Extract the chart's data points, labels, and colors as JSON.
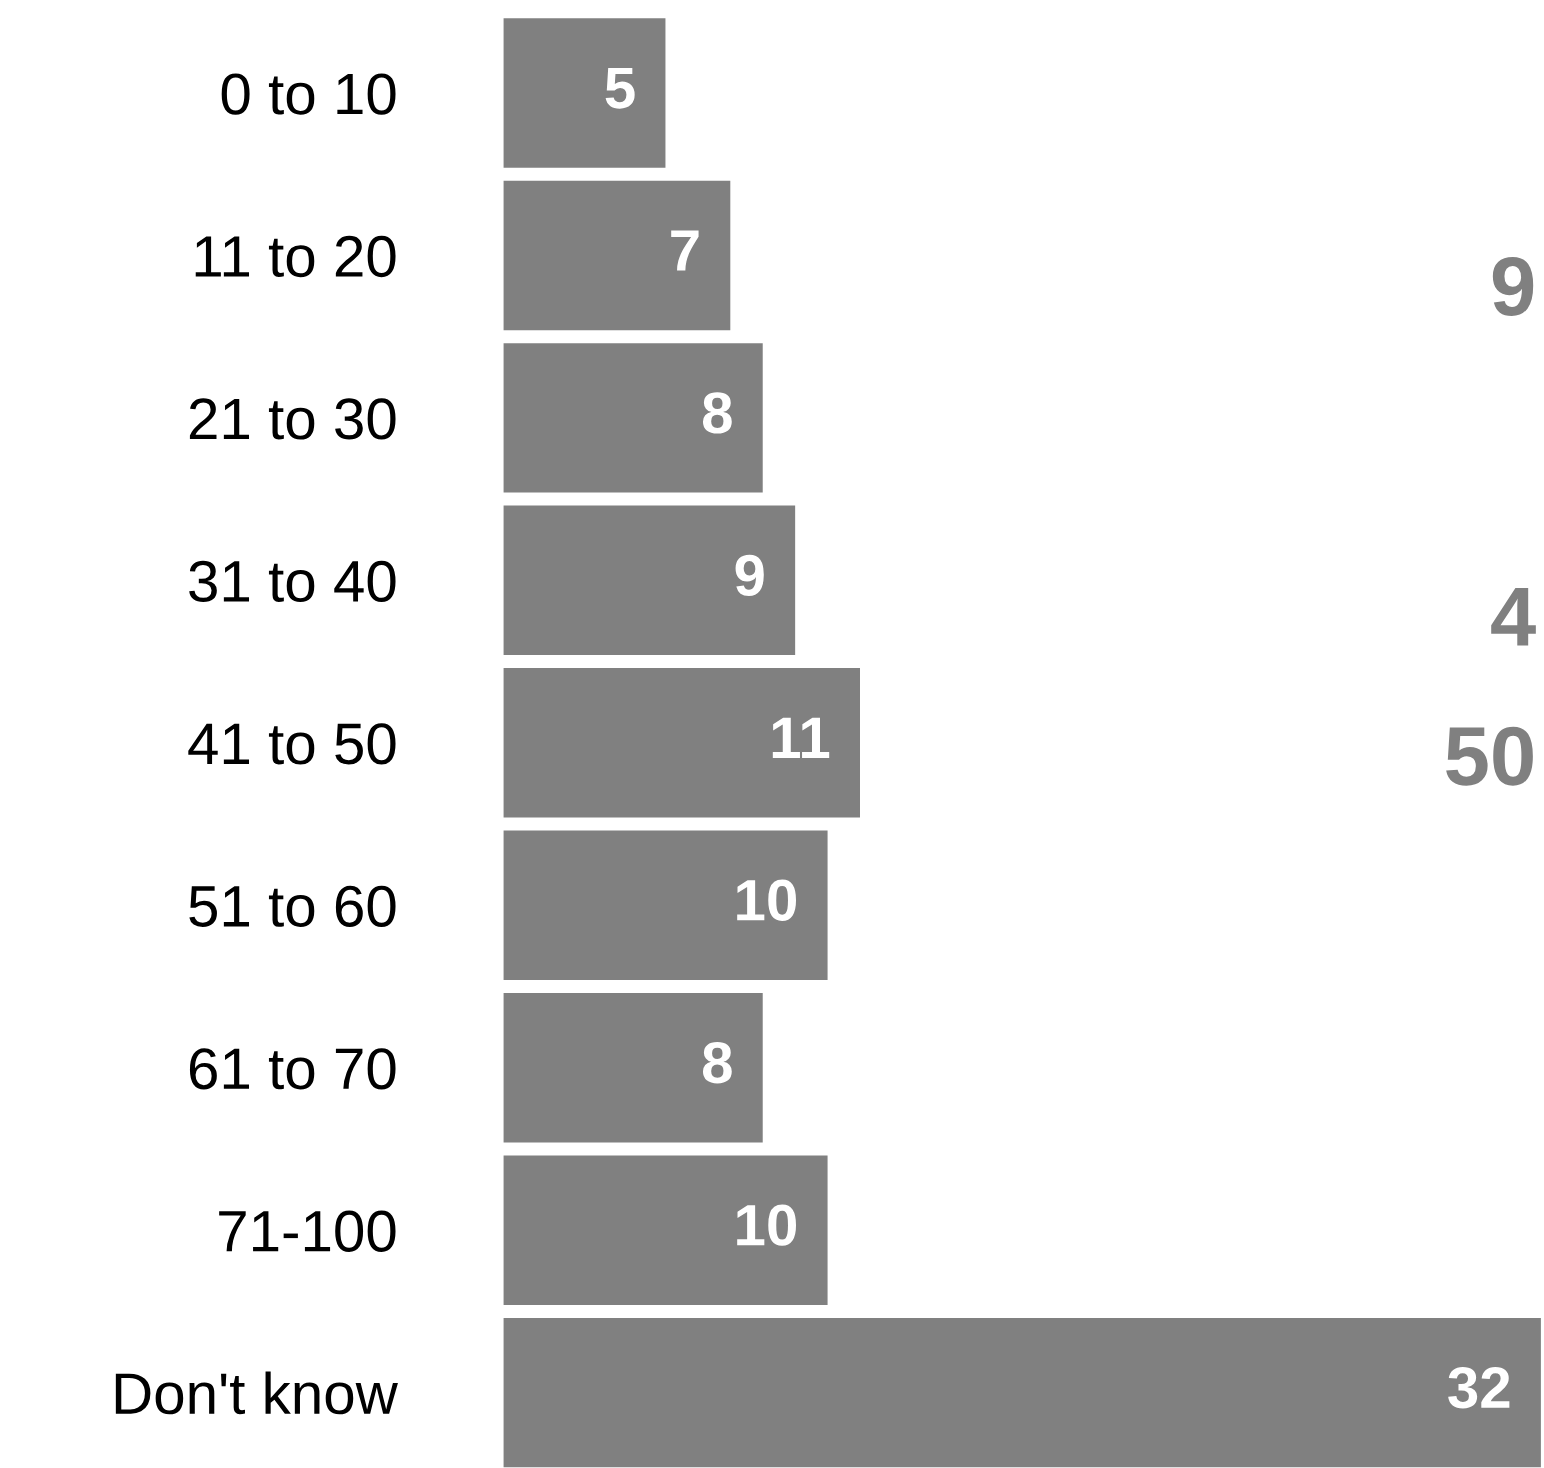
{
  "chart_data": {
    "type": "bar",
    "orientation": "horizontal",
    "categories": [
      "0 to 10",
      "11 to 20",
      "21 to 30",
      "31 to 40",
      "41 to 50",
      "51 to 60",
      "61 to 70",
      "71-100",
      "Don't know"
    ],
    "values": [
      5,
      7,
      8,
      9,
      11,
      10,
      8,
      10,
      32
    ],
    "color": "#808080",
    "data_labels": true,
    "grid": false,
    "legend": false,
    "tick_labels": "y",
    "annotations": [
      "9",
      "4",
      "50"
    ]
  }
}
